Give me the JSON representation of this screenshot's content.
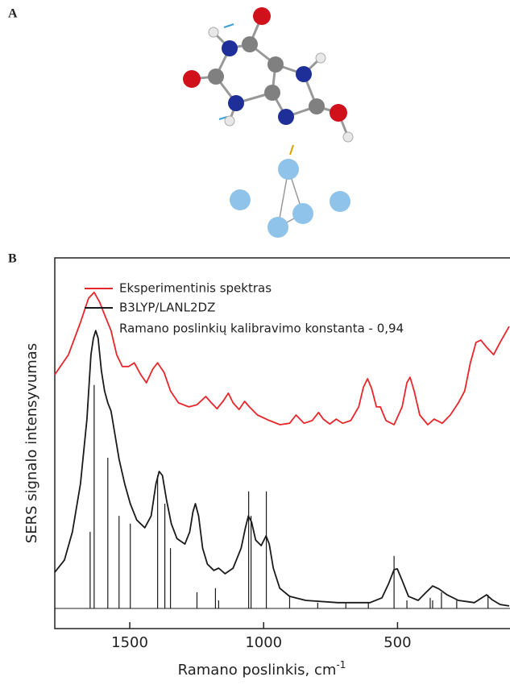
{
  "panel_a": {
    "label": "A"
  },
  "chart_data": {
    "type": "line",
    "panel_label": "B",
    "x_label": "Ramano poslinkis, cm",
    "x_label_sup": "-1",
    "y_label": "SERS signalo intensyvumas",
    "annotation": "Ramano poslinkių kalibravimo konstanta - 0,94",
    "xlim": [
      1780,
      80
    ],
    "ylim": [
      0,
      100
    ],
    "xticks": [
      1500,
      1000,
      500
    ],
    "series": [
      {
        "name": "Eksperimentinis spektras",
        "color": "#e8262b",
        "x": [
          1780,
          1729,
          1684,
          1654,
          1633,
          1612,
          1591,
          1570,
          1549,
          1528,
          1504,
          1483,
          1459,
          1438,
          1414,
          1396,
          1372,
          1348,
          1318,
          1279,
          1249,
          1216,
          1195,
          1174,
          1150,
          1132,
          1114,
          1092,
          1071,
          1053,
          1023,
          978,
          939,
          903,
          879,
          849,
          819,
          795,
          777,
          753,
          729,
          705,
          675,
          645,
          627,
          612,
          597,
          579,
          564,
          543,
          513,
          483,
          465,
          453,
          438,
          417,
          387,
          363,
          333,
          303,
          273,
          249,
          228,
          207,
          189,
          165,
          141,
          117,
          83
        ],
        "values": [
          68.5,
          73.9,
          82.6,
          89.1,
          90.7,
          88.0,
          84.1,
          80.4,
          73.9,
          70.7,
          70.7,
          71.7,
          68.5,
          66.3,
          70.0,
          71.7,
          69.1,
          64.1,
          60.9,
          59.8,
          60.4,
          62.6,
          60.9,
          59.3,
          61.5,
          63.5,
          60.9,
          59.1,
          61.3,
          59.8,
          57.6,
          56.1,
          55.0,
          55.4,
          57.6,
          55.4,
          56.1,
          58.3,
          56.5,
          55.2,
          56.5,
          55.4,
          56.1,
          59.8,
          65.2,
          67.4,
          64.8,
          59.8,
          59.8,
          56.1,
          55.0,
          59.8,
          66.3,
          67.8,
          64.1,
          57.6,
          55.0,
          56.5,
          55.4,
          57.6,
          60.9,
          64.1,
          71.7,
          77.2,
          77.8,
          75.7,
          73.9,
          77.2,
          81.5
        ]
      },
      {
        "name": "B3LYP/LANL2DZ",
        "color": "#1a1a1a",
        "x": [
          1780,
          1744,
          1714,
          1684,
          1660,
          1645,
          1636,
          1627,
          1618,
          1606,
          1594,
          1582,
          1570,
          1555,
          1540,
          1519,
          1498,
          1474,
          1444,
          1420,
          1402,
          1390,
          1378,
          1363,
          1345,
          1324,
          1294,
          1276,
          1264,
          1255,
          1243,
          1228,
          1210,
          1186,
          1168,
          1144,
          1114,
          1084,
          1068,
          1057,
          1045,
          1030,
          1009,
          991,
          979,
          964,
          940,
          903,
          843,
          723,
          603,
          558,
          534,
          513,
          501,
          483,
          459,
          423,
          393,
          369,
          345,
          315,
          273,
          213,
          168,
          147,
          117,
          83
        ],
        "values": [
          15.2,
          18.5,
          26.1,
          39.1,
          56.5,
          73.9,
          78.3,
          80.4,
          78.3,
          69.6,
          64.1,
          60.9,
          58.7,
          52.2,
          45.7,
          39.1,
          33.7,
          29.3,
          27.2,
          30.4,
          39.1,
          42.4,
          41.3,
          34.8,
          28.3,
          24.3,
          22.8,
          26.1,
          31.5,
          33.7,
          30.4,
          21.7,
          17.4,
          15.7,
          16.3,
          14.8,
          16.3,
          21.7,
          27.2,
          30.4,
          28.7,
          23.9,
          22.4,
          25.0,
          22.8,
          16.3,
          10.9,
          8.7,
          7.6,
          7.0,
          7.0,
          8.3,
          12.0,
          15.9,
          16.1,
          13.0,
          8.7,
          7.6,
          9.8,
          11.5,
          10.7,
          9.1,
          7.6,
          7.0,
          9.1,
          7.8,
          6.5,
          6.1
        ]
      }
    ],
    "sticks": {
      "color": "#1a1a1a",
      "x": [
        1648,
        1633,
        1582,
        1540,
        1498,
        1396,
        1369,
        1348,
        1249,
        1180,
        1168,
        1056,
        1047,
        990,
        903,
        798,
        693,
        609,
        513,
        465,
        378,
        369,
        336,
        279,
        162
      ],
      "values": [
        26.1,
        65.7,
        46.1,
        30.4,
        28.3,
        41.3,
        33.7,
        21.7,
        9.8,
        10.9,
        7.6,
        37.0,
        30.4,
        37.0,
        8.7,
        7.0,
        7.0,
        7.0,
        19.6,
        7.6,
        8.3,
        7.6,
        9.8,
        7.6,
        9.1
      ]
    }
  }
}
